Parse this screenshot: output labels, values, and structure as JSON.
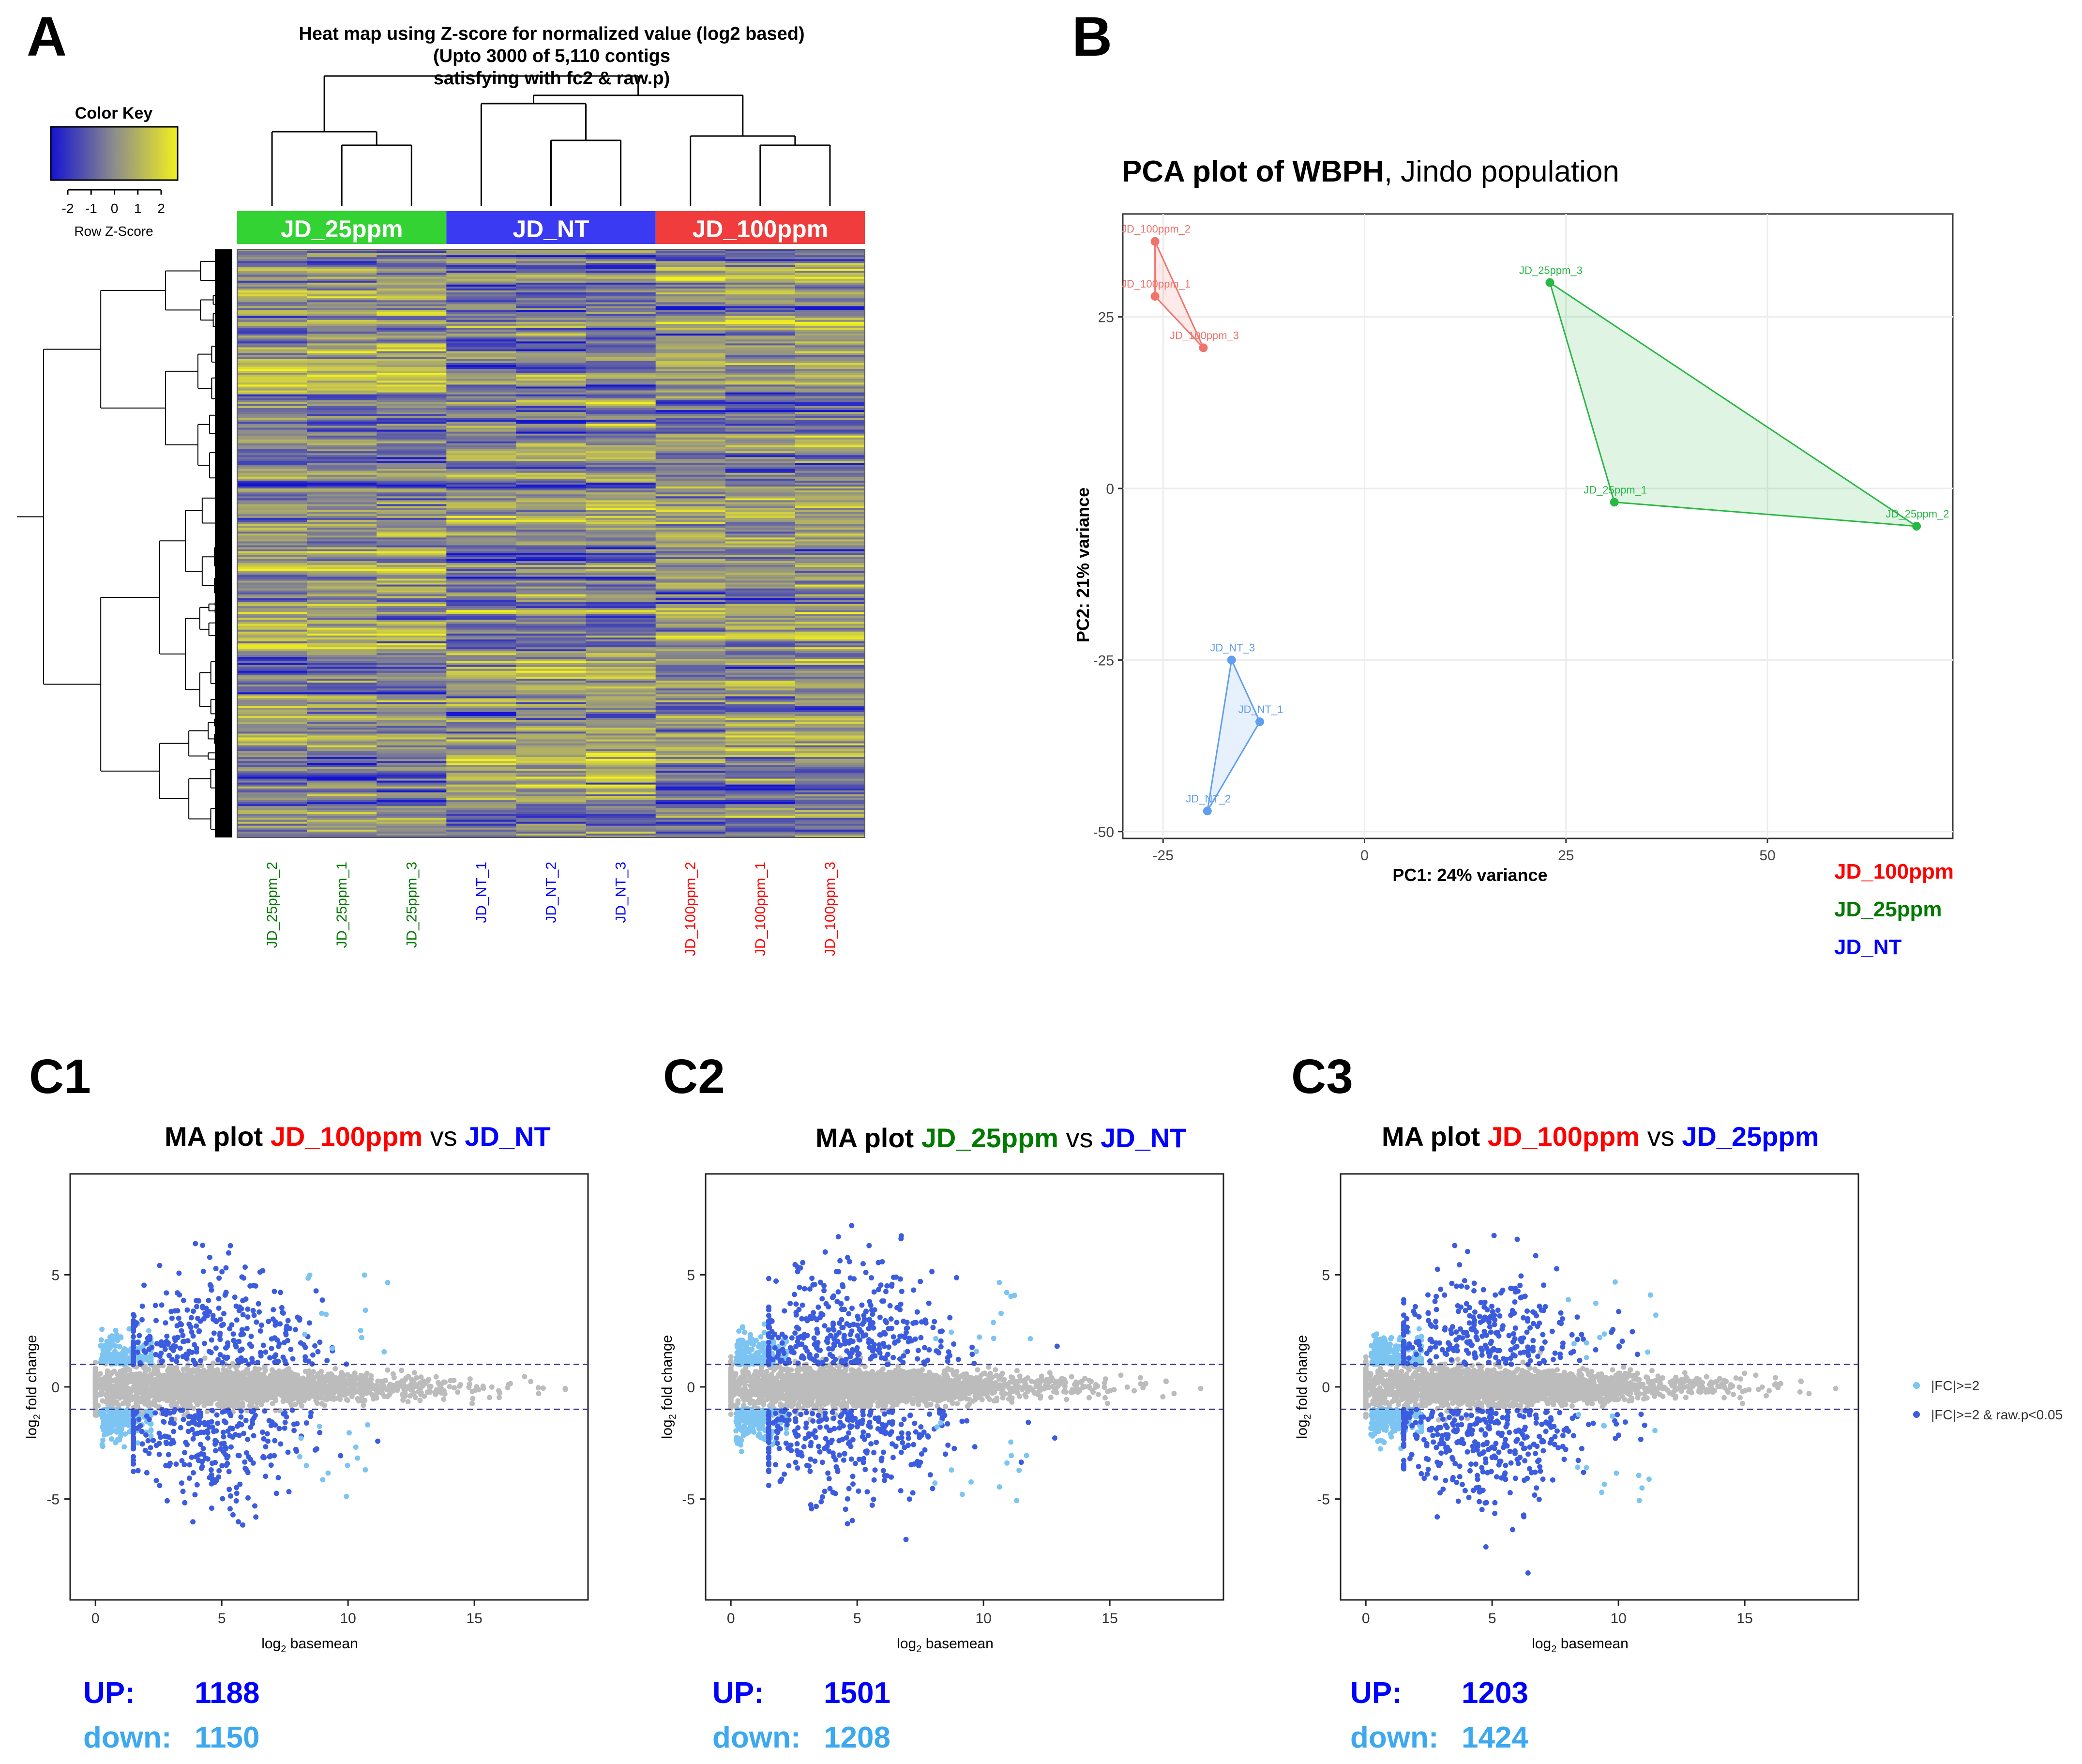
{
  "colors": {
    "heat_low": "#1414d2",
    "heat_mid": "#8c8c8c",
    "heat_high": "#f2f01e",
    "g_25ppm": "#33d333",
    "g_NT": "#3a3af2",
    "g_100ppm": "#f03c3c",
    "pca_red": "#f0736c",
    "pca_green": "#28b844",
    "pca_blue": "#5f9ef0",
    "ma_grey": "#bcbcbc",
    "ma_light": "#7cc4f2",
    "ma_dark": "#3c5ce0",
    "label_red": "#ff0000",
    "label_green": "#007a00",
    "label_blue": "#0000ff",
    "label_lightblue": "#3ca8f0"
  },
  "panel_a": {
    "letter": "A",
    "title_lines": [
      "Heat map using Z-score for normalized value (log2 based)",
      "(Upto 3000 of 5,110 contigs",
      "satisfying with fc2 & raw.p)"
    ],
    "color_key": {
      "title": "Color Key",
      "ticks": [
        "-2",
        "-1",
        "0",
        "1",
        "2"
      ],
      "sublabel": "Row Z-Score"
    },
    "groups": [
      "JD_25ppm",
      "JD_NT",
      "JD_100ppm"
    ],
    "columns": [
      "JD_25ppm_2",
      "JD_25ppm_1",
      "JD_25ppm_3",
      "JD_NT_1",
      "JD_NT_2",
      "JD_NT_3",
      "JD_100ppm_2",
      "JD_100ppm_1",
      "JD_100ppm_3"
    ]
  },
  "panel_b": {
    "letter": "B",
    "title_bold": "PCA plot of WBPH",
    "title_rest": ", Jindo population",
    "legend": [
      "JD_100ppm",
      "JD_25ppm",
      "JD_NT"
    ]
  },
  "panel_c": [
    {
      "letter": "C1",
      "ma": "MA plot",
      "cond_a": "JD_100ppm",
      "vs": "vs",
      "cond_b": "JD_NT",
      "up_label": "UP:",
      "up_value": "1188",
      "down_label": "down:",
      "down_value": "1150"
    },
    {
      "letter": "C2",
      "ma": "MA plot",
      "cond_a": "JD_25ppm",
      "vs": "vs",
      "cond_b": "JD_NT",
      "up_label": "UP:",
      "up_value": "1501",
      "down_label": "down:",
      "down_value": "1208"
    },
    {
      "letter": "C3",
      "ma": "MA plot",
      "cond_a": "JD_100ppm",
      "vs": "vs",
      "cond_b": "JD_25ppm",
      "up_label": "UP:",
      "up_value": "1203",
      "down_label": "down:",
      "down_value": "1424"
    }
  ],
  "ma_legend": [
    "|FC|>=2",
    "|FC|>=2 & raw.p<0.05"
  ],
  "chart_data": [
    {
      "type": "heatmap",
      "title": "Heat map using Z-score for normalized value (log2 based) (Upto 3000 of 5,110 contigs satisfying with fc2 & raw.p)",
      "columns": [
        "JD_25ppm_2",
        "JD_25ppm_1",
        "JD_25ppm_3",
        "JD_NT_1",
        "JD_NT_2",
        "JD_NT_3",
        "JD_100ppm_2",
        "JD_100ppm_1",
        "JD_100ppm_3"
      ],
      "column_groups": [
        "JD_25ppm",
        "JD_25ppm",
        "JD_25ppm",
        "JD_NT",
        "JD_NT",
        "JD_NT",
        "JD_100ppm",
        "JD_100ppm",
        "JD_100ppm"
      ],
      "rows": 3000,
      "color_scale": {
        "min": -2,
        "max": 2,
        "label": "Row Z-Score"
      }
    },
    {
      "type": "scatter",
      "title": "PCA plot of WBPH, Jindo population",
      "xlabel": "PC1: 24% variance",
      "ylabel": "PC2: 21% variance",
      "xlim": [
        -30,
        73
      ],
      "ylim": [
        -51,
        40
      ],
      "xticks": [
        -25,
        0,
        25,
        50
      ],
      "yticks": [
        -50,
        -25,
        0,
        25
      ],
      "series": [
        {
          "name": "JD_100ppm",
          "points": [
            {
              "label": "JD_100ppm_2",
              "x": -26,
              "y": 36
            },
            {
              "label": "JD_100ppm_1",
              "x": -26,
              "y": 28
            },
            {
              "label": "JD_100ppm_3",
              "x": -20,
              "y": 20.5
            }
          ]
        },
        {
          "name": "JD_25ppm",
          "points": [
            {
              "label": "JD_25ppm_3",
              "x": 23,
              "y": 30
            },
            {
              "label": "JD_25ppm_1",
              "x": 31,
              "y": -2
            },
            {
              "label": "JD_25ppm_2",
              "x": 68.5,
              "y": -5.5
            }
          ]
        },
        {
          "name": "JD_NT",
          "points": [
            {
              "label": "JD_NT_3",
              "x": -16.5,
              "y": -25
            },
            {
              "label": "JD_NT_1",
              "x": -13,
              "y": -34
            },
            {
              "label": "JD_NT_2",
              "x": -19.5,
              "y": -47
            }
          ]
        }
      ]
    },
    {
      "type": "scatter",
      "title": "MA plot JD_100ppm vs JD_NT",
      "xlabel": "log2 basemean",
      "ylabel": "log2 fold change",
      "xlim": [
        -1,
        19.5
      ],
      "ylim": [
        -9.5,
        9.5
      ],
      "xticks": [
        0,
        5,
        10,
        15
      ],
      "yticks": [
        -5,
        0,
        5
      ],
      "thresholds": [
        -1,
        1
      ],
      "up": 1188,
      "down": 1150
    },
    {
      "type": "scatter",
      "title": "MA plot JD_25ppm vs JD_NT",
      "xlabel": "log2 basemean",
      "ylabel": "log2 fold change",
      "xlim": [
        -1,
        19.5
      ],
      "ylim": [
        -9.5,
        9.5
      ],
      "xticks": [
        0,
        5,
        10,
        15
      ],
      "yticks": [
        -5,
        0,
        5
      ],
      "thresholds": [
        -1,
        1
      ],
      "up": 1501,
      "down": 1208
    },
    {
      "type": "scatter",
      "title": "MA plot JD_100ppm vs JD_25ppm",
      "xlabel": "log2 basemean",
      "ylabel": "log2 fold change",
      "xlim": [
        -1,
        19.5
      ],
      "ylim": [
        -9.5,
        9.5
      ],
      "xticks": [
        0,
        5,
        10,
        15
      ],
      "yticks": [
        -5,
        0,
        5
      ],
      "thresholds": [
        -1,
        1
      ],
      "up": 1203,
      "down": 1424
    }
  ]
}
